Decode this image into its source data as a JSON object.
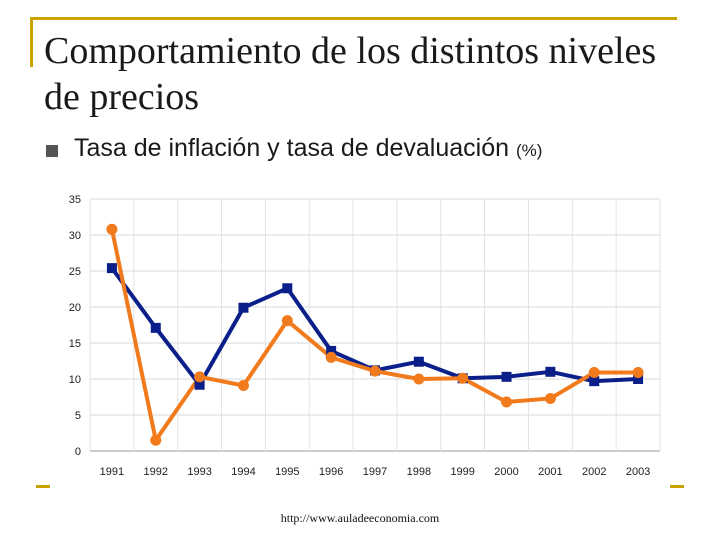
{
  "slide": {
    "title": "Comportamiento de los distintos niveles de precios",
    "subtitle": "Tasa de inflación y tasa de devaluación",
    "subtitle_unit": "(%)",
    "source": "http://www.auladeeconomia.com"
  },
  "chart_data": {
    "type": "line",
    "title": "",
    "xlabel": "",
    "ylabel": "",
    "categories": [
      "1991",
      "1992",
      "1993",
      "1994",
      "1995",
      "1996",
      "1997",
      "1998",
      "1999",
      "2000",
      "2001",
      "2002",
      "2003"
    ],
    "ylim": [
      0,
      35
    ],
    "yticks": [
      0,
      5,
      10,
      15,
      20,
      25,
      30,
      35
    ],
    "grid": true,
    "series": [
      {
        "name": "Serie azul (marcador cuadrado)",
        "color": "#0b1f8a",
        "marker": "square",
        "values": [
          25.4,
          17.1,
          9.2,
          19.9,
          22.6,
          13.9,
          11.2,
          12.4,
          10.1,
          10.3,
          11.0,
          9.7,
          10.0
        ]
      },
      {
        "name": "Serie naranja (marcador circular)",
        "color": "#f07a1c",
        "marker": "circle",
        "values": [
          30.8,
          1.5,
          10.3,
          9.1,
          18.1,
          13.0,
          11.1,
          10.0,
          10.1,
          6.8,
          7.3,
          10.9,
          10.9
        ]
      }
    ]
  }
}
